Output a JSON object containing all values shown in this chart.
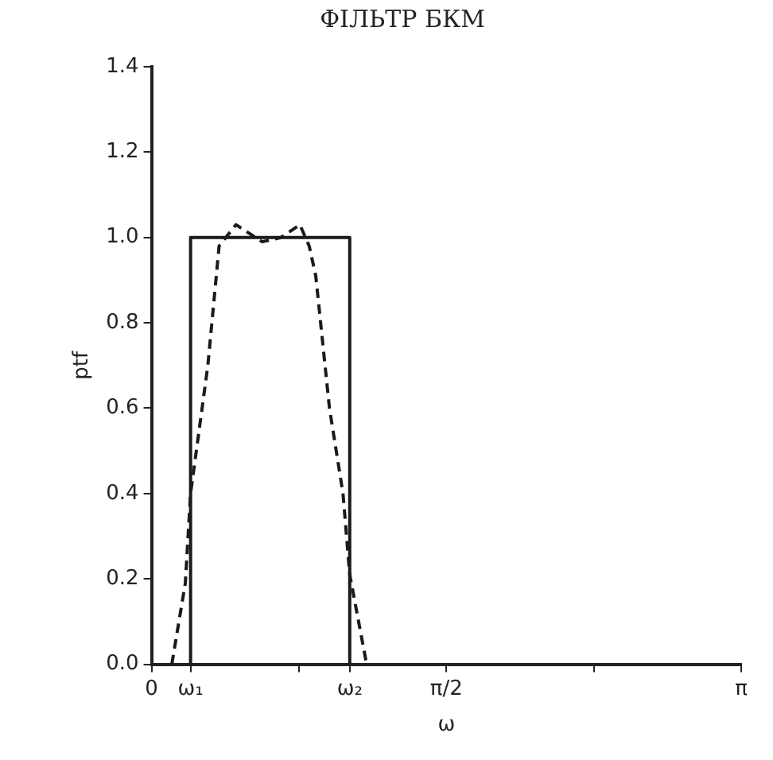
{
  "chart_data": {
    "type": "line",
    "title": "ФІЛЬТР БКМ",
    "xlabel": "ω",
    "ylabel": "ptf",
    "xlim": [
      0,
      3.1416
    ],
    "ylim": [
      0,
      1.4
    ],
    "xticks": [
      0,
      {
        "value": 0.208,
        "label": "ω₁"
      },
      {
        "value": 0.785,
        "label": null
      },
      {
        "value": 1.056,
        "label": "ω₂"
      },
      {
        "value": 1.571,
        "label": "π/2"
      },
      {
        "value": 2.356,
        "label": null
      },
      {
        "value": 3.1416,
        "label": "π"
      }
    ],
    "yticks": [
      {
        "value": 0,
        "label": "0.0"
      },
      {
        "value": 0.2,
        "label": "0.2"
      },
      {
        "value": 0.4,
        "label": "0.4"
      },
      {
        "value": 0.6,
        "label": "0.6"
      },
      {
        "value": 0.8,
        "label": "0.8"
      },
      {
        "value": 1,
        "label": "1.0"
      },
      {
        "value": 1.2,
        "label": "1.2"
      },
      {
        "value": 1.4,
        "label": "1.4"
      }
    ],
    "grid": false,
    "legend": false,
    "marker": "none",
    "series": [
      {
        "color": "#1a1a1a",
        "line_style": "solid",
        "x": [
          0.208,
          0.208,
          1.056,
          1.056
        ],
        "values": [
          0,
          1,
          1,
          0
        ]
      },
      {
        "color": "#1a1a1a",
        "line_style": "dashed",
        "x": [
          0.108,
          0.18,
          0.208,
          0.3,
          0.36,
          0.45,
          0.59,
          0.69,
          0.79,
          0.84,
          0.875,
          0.948,
          1.02,
          1.056,
          1.146
        ],
        "values": [
          0,
          0.19,
          0.4,
          0.7,
          0.98,
          1.03,
          0.99,
          1,
          1.03,
          0.98,
          0.91,
          0.6,
          0.4,
          0.21,
          0
        ]
      }
    ]
  }
}
